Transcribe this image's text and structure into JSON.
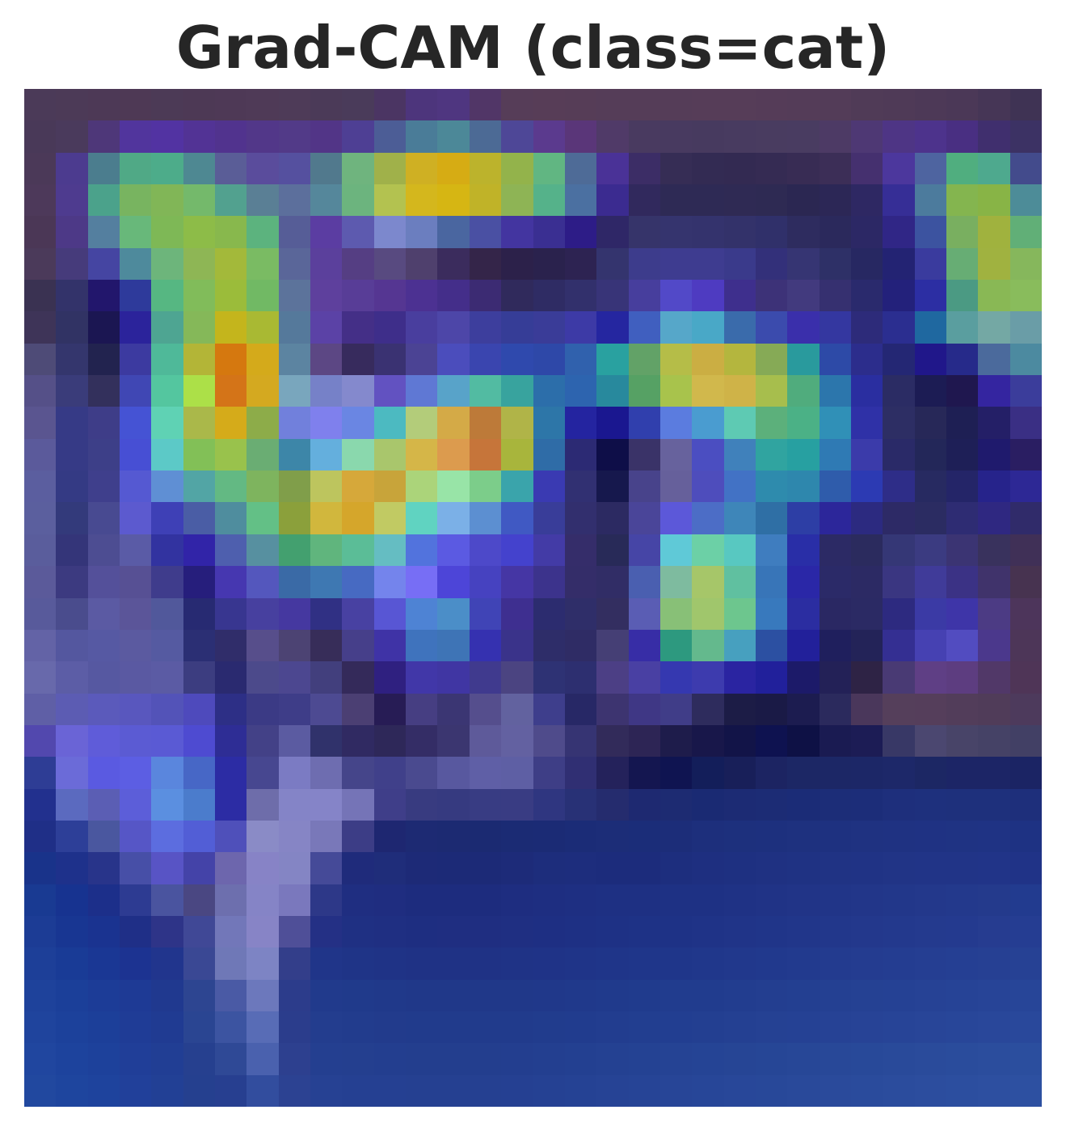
{
  "chart_data": {
    "type": "heatmap",
    "title": "Grad-CAM (class=cat)",
    "xlabel": "",
    "ylabel": "",
    "axes_visible": false,
    "colorbar": false,
    "grid": "32x32",
    "colors": {
      "background": "#ffffff",
      "title_text": "#262626"
    },
    "cells_hex": [
      "4b3a58 4c3a57 4d3956 4e3955 4c3a56 4d3955 4e3956 4f3a57 4e3b58 4b3a58 4a3b5a 4b3563 4d357c 4f3680 513667 563d58 573d57 563d57 553d58 553d58 553d58 563d58 563d58 553c58 543c58 533c58 503b57 4f3a57 4d3957 4b3857 463656 3f3354",
      "493958 4a3a5c 4e3779 51359d 5233a2 523395 51338e 523789 523a88 523587 4e3f94 4c5d96 4a7c98 4c8898 4c6a95 4e4797 5b3a8e 5a3679 503a68 493a60 483a60 473a5f 483b60 493c60 493c61 4d3a65 4e3874 4e3585 4d338c 492f82 402f6e 3c3264",
      "4b3958 4c3b8f 4b7d8e 50a986 4dac8a 4e8892 5a5d97 5a4c9c 55509f 51798d 6fb47e a0b14a cfb023 d6ac14 bcb32c 93b34b 61b682 4e6b97 4a3297 3c2d66 362d55 332b53 332a52 352b53 382c54 3c2e57 45306f 4c379d 4e64a0 50ae7f 4ea98e 434b8c 3a2e8f",
      "4d395a 4e3b8f 4ba28b 78b460 81b657 74b96b 52a18f 5a7f95 5c6f9c 55879b 6cb47e b3c250 d4b71d d6b613 c0b328 8eb455 55b28a 4b70a1 3b2b90 31295d 2e2a55 2e2a55 2f2a54 2e2a53 2b2752 2c2756 2e2863 362e96 4c7b9d 84b54f 88b446 4d8c98 4a57a3",
      "4b3756 4d3987 547f9f 68b87a 7eb856 8dbc48 88b84d 5cb37e 565d97 5b3da2 5d5aaf 7c88cd 6b7ebf 4a66a0 4a50a3 4335a0 3a2f92 2d1c87 2f2767 36346a 35346e 34336d 33326a 30306a 2e2c5f 2b295c 2c2865 302686 3c53a0 79af60 a0b23e 61af77 4aa48d",
      "4b3a5a 463b7b 4545a2 4e8a9c 6db57b 8eb655 a3b93a 7abb63 5a6699 5b409c 553e83 584a80 4f406d 3b2c5d 342549 2c214a 2a224d 2d2352 34346e 3d3c8c 3e3c90 3e3c90 3a3a8b 33307a 363573 2e3067 272862 232373 3a3b9e 67ad74 a0b240 86b75c 69b27b",
      "3a3252 33336a 22166c 2e3a9b 56b782 81bc5a 9bbc3a 71b964 5c739b 5e409d 583d97 553692 4c3192 442e8a 3c2b73 302a5c 2f2c64 32306c 383478 473e9d 5249c8 4e3bc1 3e2f8d 3d3278 423a7e 363070 2a2a6d 23217b 2c2ea3 4b9a83 89b855 89bc5c 73b867",
      "3e3458 313364 1b1652 2b239b 4ea592 85b859 c4b51c a9b933 55799b 5b42a6 442f87 3e2e8a 493e9e 4d46a8 3d3e9d 363d97 3a3c98 3d3aa6 2526a0 405fbf 56a7c9 49a8c7 3a6bab 3b4bad 3a2fab 3437a0 2d2b7a 2b2e90 1f68a0 5a9e9f 74a8a4 6a9da7",
      "4e4b77 34366d 22234f 3c3aa0 4fb999 b3b537 d5780f d4aa1b 5c84a1 5c4784 372b5d 3a3272 4b4394 4b4dbc 3a45af 2f49ad 2e48a8 3061ad 29a1a0 62a267 b5bd48 cbae43 b4b63e 86aa56 299a9d 2d4aa7 2c2d8c 242774 20178a 262a8a 4b6a9c 4c8aa0",
      "555088 3a3c7a 33305c 4047b4 54c69f ace048 d47418 d4a920 79a6bd 7681c8 8489cd 6252c1 5f78d4 58a3c9 52bba2 38a39e 2c6eaa 2d64af 28899d 56a164 a8c34c d1b84c cfb348 a7be4d 50ac7d 2c76ac 2a2ea0 2b2c64 1c1c54 1f174f 3425a0 3b3d9b",
      "5a5590 363a86 3e3d88 4553d4 5fd2b4 aab84a d5ab1a 8dac49 7180dc 7f80ed 6a86e3 4cbac1 b3cc7a d4aa47 bd7a39 b0b448 2d76a8 2424a0 1a1790 303fad 5b7cdf 4a9cd0 5ecab3 5cb07b 4bb186 3090b7 2f31a7 2d2e64 272858 1e1f54 241f67 3a2f84",
      "5b5a9b 363a86 3d3f88 474fd4 5cc9c7 82c057 99c24c 6aad73 3d86a8 64afdd 8ad8ad a9c66c d5b648 dc9b4e c6753a a8b53c 2f6ca7 2c2a74 0e0e48 3a3368 67629d 4b4ec1 4081bb 30a4a0 27a0a1 2f7ab4 3b3baa 2a2a68 232759 1e1f57 1f1a6d 2a1e62",
      "5b5e9f 343a84 3f3f8c 5559d2 5f8fd4 52a5a5 63b983 7eb45e 809e4a bdc55e d6a83a c8a43a abd47a 98e4a7 7ccd8a 3aa4ab 3a3ab2 313072 16184d 48438b 66609b 4e4dbc 4272c5 2e8bad 2e87ad 2f5cab 2c3ab3 2e2d88 272a61 242568 26238b 2d2895",
      "5b5f9e 333a7b 484a91 5c5acf 3e40b6 4a5da5 4f8d9e 63c086 8ba03b d1b73d d5a62b c1ca63 60d3c1 7bb0e7 5c8fd1 4059c3 393d99 322f6e 2c2a62 4a4599 5c58d9 4c6dc6 3e86b9 2f6fa5 2d3ea5 2c269a 2c2a80 2d2a66 2b2c62 2e2c73 2f2881 302b6a",
      "5a5d9c 343579 4d4d92 5a5ba6 3233a0 3124a8 4e5fae 5790a0 43a06f 60b57d 5bbd97 65bdc2 5273dd 5b5ae2 4d49c9 4442cd 433ba6 352d6a 282a58 4645a6 5fc9d7 6cd0a6 58c8c1 3f7dbf 292ea7 2c2a65 2b2b5e 353776 3b3b81 3b3473 39325d 403057",
      "5b5a9a 3c3a80 54509a 575094 3f3c8c 261e7c 4637b0 5457bd 3a6aa6 3e78b2 476ac2 7484ec 776ef5 4d45d8 4642c0 4536a4 3c338c 342d69 312d66 4a5fb0 7ebb9f a6c669 60c0a0 3875b8 2a27a7 2b2a68 2c2a64 3a3681 403b99 3b3285 40336b 473350",
      "585a9b 4a4c8d 5b5aa3 5b5599 51589b 272a72 383690 47409f 4538a0 303084 4841a2 5856d4 4e83d4 4b8ec8 4044b6 3e2f90 2c2c6f 2f2e69 332e60 5a5db4 88c077 a0c66c 6dc68e 3879bd 2b2da1 2a2863 2b2a64 2d2a80 3b3aa5 3e35a8 4c3b84 4d355b",
      "6363a6 54579f 5659a3 5b5aa0 555aa1 2b2f74 302d6a 574e8b 4c4373 372d59 463f8a 3f33a6 3f73bd 3e74b6 3531b0 3a338a 2e2d69 2f2c65 453f75 372da6 2d997f 64b98d 47a0bf 2c50a2 22209a 1f1f5d 232358 342f92 4641b2 524cc0 4b388c 4d3658",
      "6869ab 5c5da6 5658a1 5a59a2 5b5ba4 3c3d80 2a2a70 4c4a8b 4c4790 423f7d 342a5a 2f2080 4137a8 4036a3 403a8e 4b4481 2e3274 2d2f70 4c3f85 4940a3 3538b0 3d3bae 2a24a1 21209b 1c1a69 232157 2e2345 493a74 5f3f85 5d3d80 513868 4f3557",
      "5f5fa6 5c5cb3 5b5abb 5957be 5353b8 4e4abc 2d2f86 3b3a85 3e3d88 4d4a92 4b3f73 271c55 463e82 3b3673 554e8d 62629f 3e3e8c 272866 3d3470 3f3785 403d88 2e2c5d 1c1c46 1a1a46 1c1c50 2b2a5d 4a375b 553f5b 553e5b 523d5a 503c59 4d3a5c",
      "5248ae 6a64d6 5f5cd9 5b5bd3 5a5ad4 4e4bd1 2e2d95 434187 5b5ba1 30326b 302a62 2e2859 342d66 3b3670 5e5a9a 6361a1 4f4b8b 363473 322b5a 2d2555 1e1c4b 18174a 121448 0e1250 0e1145 1a1b52 1c1c55 383866 4b4770 484468 454266 424065",
      "2e3d95 6b6bd8 5a5ae1 5c5ee3 5a86dd 4767c6 2c2ca4 474790 7b7bc3 6e6db0 45458a 40408a 4a4a8f 58589f 5f5fa6 5e5fa4 3e3e86 302f73 24225b 141650 0f1451 131e5a 181f59 1c2462 1c2765 1c2766 1c2767 1d2869 1c2764 1c2566 1c2566 1b2464",
      "22308e 5b6abf 5b5eb4 5c5ed9 5b8fe0 4b7ccc 2c2ca4 6e6daa 8484c7 8584c8 7574b7 3f3e89 383b80 363a80 383c83 393c83 2f3680 283176 252c6e 1e2971 1d2b72 1a2a73 1c2b74 1c2c75 1b2c77 1c2d78 1c2d79 1e2f7c 1e307d 1e307c 1e307c 1e2f7b",
      "1f2f87 2d3f98 4a579f 5656c6 5c6ddf 525ed6 4f50ba 8a8bc6 8685c5 7978b9 3c3d86 1e2771 1d2a73 1c2a72 1b2a72 1b2b74 1b2b75 1b2c77 1c2d78 1b2d79 1c2d79 1d2f7c 1d307d 1d307e 1e317f 1e3180 1f3281 1f3282 1f3283 1f3383 1f3384 1e3283",
      "19338a 1e318b 28348a 474fa7 5854c5 4443a8 6d66ad 8783c6 8485c4 454a98 1f2b7b 1f2d7a 1d2a77 1c2a77 1c2a77 1d2b79 1d2d7c 1d2d7d 1c2c7c 1c2c7c 1d2e7e 1e2f80 1e3081 1f3182 1f3283 203384 203385 213486 213487 213487 213488 203387",
      "193a92 173390 1c2f8a 2d3b92 4a549f 4a4782 6d6fae 8584c6 7a78bd 2d3888 1f2e81 1f2d80 1d2c7e 1d2c7e 1d2c7e 1e2d80 1e2e81 1e2f82 1e3083 1e3083 1e3184 1e3184 1f3285 203386 213487 213588 223689 22378a 23388b 23398c 243a8c 223b8f",
      "1c3c95 183692 1a3390 1f2f87 2e3488 404896 7277b9 8784c6 4f4f98 243085 1f3083 1f2f82 1e2e81 1f2e81 1f2e81 1f2f82 1e2f83 1e3084 1e3185 1e3286 1e3286 1f3387 203488 203589 21368a 22378b 23388c 23398d 243a8e 243a8f 263c90 253d92",
      "1d3f98 193b96 1a3794 1c3391 21358d 3a4894 6f78b7 7d84c4 333e8a 203589 1f3487 1f3386 1f3285 1f3285 1f3285 1f3386 1f3387 1f3488 1f3589 1f368a 1f368a 20378b 21388c 21398d 223a8e 233b8f 243c90 243d91 253e92 253f93 264093 264194",
      "1e429b 1b3f99 1c3c97 1e3a95 20398f 2d4591 4a5aa5 6c78bc 2c3c8b 213a8c 203a8b 20398a 203889 203889 203889 203889 20388a 20398b 203a8c 203b8d 213c8e 213c8e 223d8f 233e90 233f91 244092 254193 254194 264295 264396 274497 274598",
      "1f449d 1c419b 1c3f99 1f3c96 203b92 2a4592 3c54a1 586cb6 2b3d8c 233d8e 223c8d 223b8c 213b8c 213b8c 213b8c 213b8c 213c8d 213c8e 223d8f 223e90 223e91 233f91 244092 254193 254194 264295 274396 274497 284598 284699 29479a 29489b",
      "20469f 1d439d 1d419b 203e98 213e94 26408f 2f4996 4a61ae 2d408f 243f90 243f8f 233e8f 233e8e 233e8e 233e8e 233e8f 233f90 234091 244192 244293 254394 254495 264595 264696 274797 284898 284999 294a9a 2a4b9b 2a4c9c 2b4d9d 2b4e9e",
      "21489f 1e459e 1e439d 21409a 224095 25408f 273f90 324d9e 2c4292 264193 254092 254092 254091 254091 254091 254092 254193 254294 264395 264496 274597 274698 284799 284899 29499a 2a4a9b 2a4b9c 2b4c9d 2c4d9e 2c4e9f 2d4fa0 2d50a1"
    ]
  }
}
